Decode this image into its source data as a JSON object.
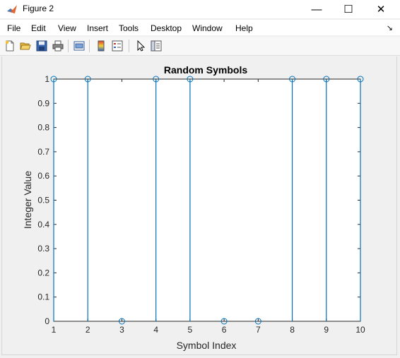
{
  "window": {
    "title": "Figure 2",
    "minimize_glyph": "—",
    "maximize_glyph": "☐",
    "close_glyph": "✕"
  },
  "menu": {
    "items": [
      "File",
      "Edit",
      "View",
      "Insert",
      "Tools",
      "Desktop",
      "Window",
      "Help"
    ],
    "overflow_glyph": "↘"
  },
  "toolbar": {
    "icons": [
      "new-figure-icon",
      "open-file-icon",
      "save-icon",
      "print-icon",
      "print-preview-icon",
      "colorbar-icon",
      "legend-icon",
      "pointer-icon",
      "property-editor-icon"
    ]
  },
  "chart_data": {
    "type": "stem",
    "title": "Random Symbols",
    "xlabel": "Symbol Index",
    "ylabel": "Integer Value",
    "x": [
      1,
      2,
      3,
      4,
      5,
      6,
      7,
      8,
      9,
      10
    ],
    "values": [
      1,
      1,
      0,
      1,
      1,
      0,
      0,
      1,
      1,
      1
    ],
    "xlim": [
      1,
      10
    ],
    "ylim": [
      0,
      1
    ],
    "xticks": [
      "1",
      "2",
      "3",
      "4",
      "5",
      "6",
      "7",
      "8",
      "9",
      "10"
    ],
    "yticks": [
      "0",
      "0.1",
      "0.2",
      "0.3",
      "0.4",
      "0.5",
      "0.6",
      "0.7",
      "0.8",
      "0.9",
      "1"
    ],
    "grid": false,
    "color": "#0072bd",
    "marker": "circle"
  }
}
